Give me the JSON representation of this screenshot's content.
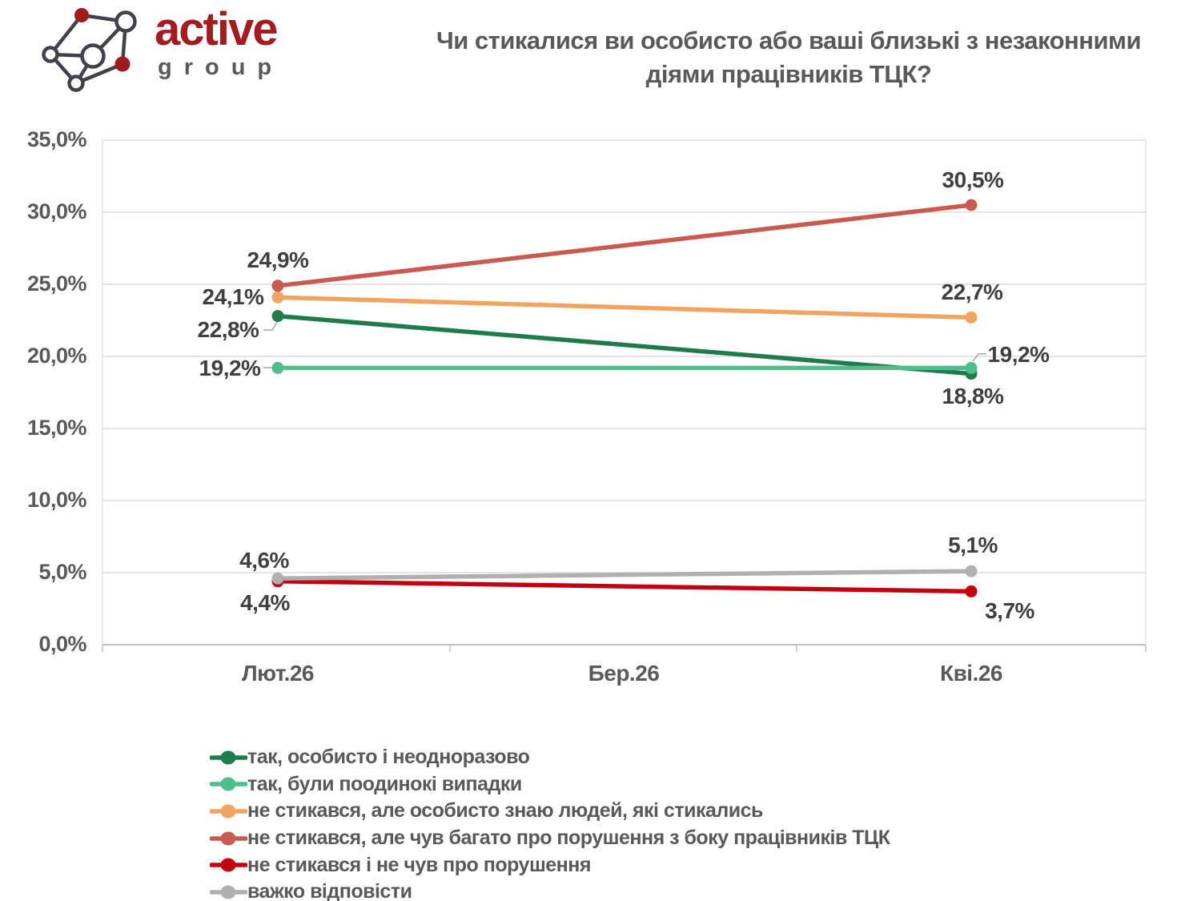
{
  "logo": {
    "brand": "active",
    "sub": "group"
  },
  "title": {
    "line1": "Чи стикалися ви особисто або ваші близькі з незаконними",
    "line2": "діями працівників ТЦК?"
  },
  "chart_data": {
    "type": "line",
    "title": "Чи стикалися ви особисто або ваші близькі з незаконними діями працівників ТЦК?",
    "categories": [
      "Лют.26",
      "Бер.26",
      "Кві.26"
    ],
    "yticks": [
      "35,0%",
      "30,0%",
      "25,0%",
      "20,0%",
      "15,0%",
      "10,0%",
      "5,0%",
      "0,0%"
    ],
    "ylim": [
      0,
      35
    ],
    "grid": true,
    "legend_position": "bottom-left",
    "series": [
      {
        "name": "так, особисто і неодноразово",
        "color": "#1F7A4C",
        "values": [
          22.8,
          null,
          18.8
        ],
        "labels": [
          "22,8%",
          "18,8%"
        ]
      },
      {
        "name": "так, були поодинокі випадки",
        "color": "#50BD8C",
        "values": [
          19.2,
          null,
          19.2
        ],
        "labels": [
          "19,2%",
          "19,2%"
        ]
      },
      {
        "name": "не стикався, але особисто знаю людей, які стикались",
        "color": "#F1A45F",
        "values": [
          24.1,
          null,
          22.7
        ],
        "labels": [
          "24,1%",
          "22,7%"
        ]
      },
      {
        "name": "не стикався, але чув багато про порушення з боку працівників ТЦК",
        "color": "#C75B50",
        "values": [
          24.9,
          null,
          30.5
        ],
        "labels": [
          "24,9%",
          "30,5%"
        ]
      },
      {
        "name": "не стикався і не чув про порушення",
        "color": "#C3030F",
        "values": [
          4.4,
          null,
          3.7
        ],
        "labels": [
          "4,4%",
          "3,7%"
        ]
      },
      {
        "name": "важко відповісти",
        "color": "#B0B0B0",
        "values": [
          4.6,
          null,
          5.1
        ],
        "labels": [
          "4,6%",
          "5,1%"
        ]
      }
    ]
  }
}
